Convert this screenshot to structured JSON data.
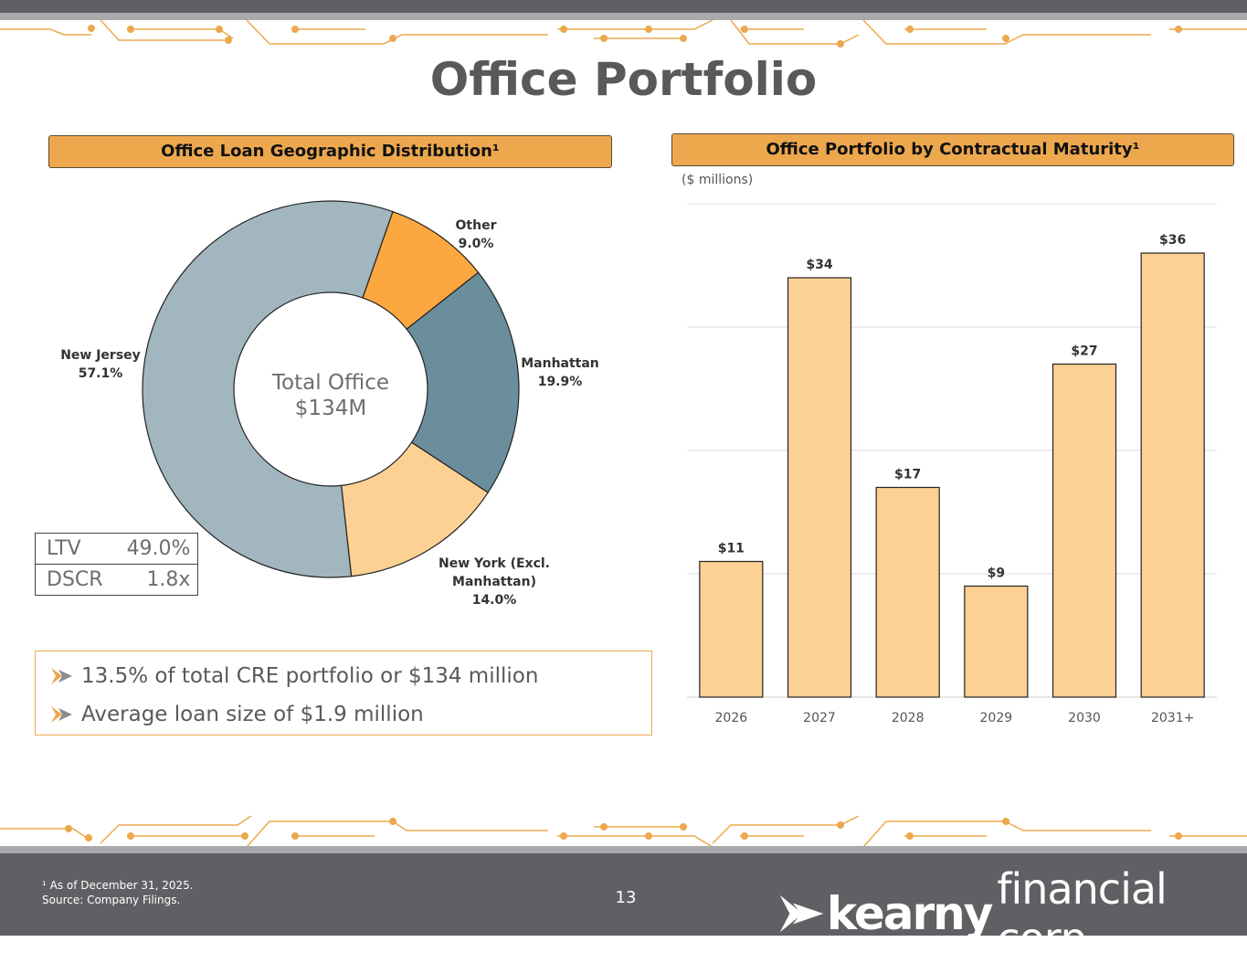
{
  "page": {
    "title": "Office Portfolio",
    "page_number": "13",
    "footnote_line1": "¹ As of December 31, 2025.",
    "footnote_line2": "Source: Company Filings."
  },
  "logo": {
    "bold_text": "kearny",
    "light_text": "financial corp."
  },
  "left_panel": {
    "header": "Office Loan Geographic Distribution¹",
    "center_label_line1": "Total Office",
    "center_label_line2": "$134M",
    "metrics": [
      {
        "label": "LTV",
        "value": "49.0%"
      },
      {
        "label": "DSCR",
        "value": "1.8x"
      }
    ],
    "bullets": [
      "13.5% of total CRE portfolio or $134 million",
      "Average loan size of $1.9 million"
    ]
  },
  "right_panel": {
    "header": "Office Portfolio by Contractual Maturity¹",
    "units": "($ millions)"
  },
  "colors": {
    "accent": "#eda84e",
    "footer": "#5f6063",
    "new_jersey": "#a2b6c0",
    "other": "#fca73f",
    "manhattan": "#6b8e9c",
    "new_york": "#fdd094",
    "bar": "#fdd094"
  },
  "chart_data": [
    {
      "type": "pie",
      "title": "Office Loan Geographic Distribution¹",
      "slices": [
        {
          "name": "Other",
          "value": 9.0,
          "label": "9.0%",
          "color": "#fca73f"
        },
        {
          "name": "Manhattan",
          "value": 19.9,
          "label": "19.9%",
          "color": "#6b8e9c"
        },
        {
          "name": "New York  (Excl. Manhattan)",
          "value": 14.0,
          "label": "14.0%",
          "color": "#fdd094"
        },
        {
          "name": "New Jersey",
          "value": 57.1,
          "label": "57.1%",
          "color": "#a2b6c0"
        }
      ]
    },
    {
      "type": "bar",
      "title": "Office Portfolio by Contractual Maturity¹",
      "ylabel": "($ millions)",
      "categories": [
        "2026",
        "2027",
        "2028",
        "2029",
        "2030",
        "2031+"
      ],
      "values": [
        11,
        34,
        17,
        9,
        27,
        36
      ],
      "value_labels": [
        "$11",
        "$34",
        "$17",
        "$9",
        "$27",
        "$36"
      ],
      "ylim": [
        0,
        40
      ],
      "grid": true
    }
  ]
}
